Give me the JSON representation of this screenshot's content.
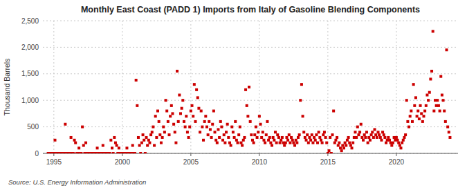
{
  "chart_data": {
    "type": "scatter",
    "title": "Monthly East Coast (PADD 1) Imports from Italy of Gasoline Blending Components",
    "y_label": "Thousand Barrels",
    "annotation": "Source: U.S. Energy Information Administration",
    "color": "#cc0000",
    "marker": "square",
    "grid": true,
    "xlim": [
      1994.2,
      2024.5
    ],
    "xticks": [
      1995,
      2000,
      2005,
      2010,
      2015,
      2020
    ],
    "ylim": [
      0,
      2500
    ],
    "yticks": [
      0,
      500,
      {
        "value": 1000,
        "label": "1,000"
      },
      {
        "value": 1500,
        "label": "1,500"
      },
      {
        "value": 2000,
        "label": "2,000"
      },
      {
        "value": 2500,
        "label": "2,500"
      }
    ],
    "x": [
      1994.583,
      1994.667,
      1994.75,
      1994.833,
      1994.917,
      1995.0,
      1995.083,
      1995.167,
      1995.25,
      1995.333,
      1995.417,
      1995.5,
      1995.583,
      1995.667,
      1995.75,
      1995.833,
      1995.917,
      1996.0,
      1996.083,
      1996.167,
      1996.25,
      1996.333,
      1996.417,
      1996.5,
      1996.583,
      1996.667,
      1996.75,
      1996.833,
      1996.917,
      1997.0,
      1997.083,
      1997.167,
      1997.25,
      1997.333,
      1997.417,
      1997.5,
      1997.583,
      1997.667,
      1997.75,
      1997.833,
      1997.917,
      1998.0,
      1998.083,
      1998.167,
      1998.25,
      1998.333,
      1998.417,
      1998.5,
      1998.583,
      1998.667,
      1998.75,
      1998.833,
      1998.917,
      1999.0,
      1999.083,
      1999.167,
      1999.25,
      1999.333,
      1999.417,
      1999.5,
      1999.583,
      1999.667,
      1999.75,
      1999.833,
      1999.917,
      2000.0,
      2000.083,
      2000.167,
      2000.25,
      2000.333,
      2000.417,
      2000.5,
      2000.583,
      2000.667,
      2000.75,
      2000.833,
      2000.917,
      2001.0,
      2001.083,
      2001.167,
      2001.25,
      2001.333,
      2001.417,
      2001.5,
      2001.583,
      2001.667,
      2001.75,
      2001.833,
      2001.917,
      2002.0,
      2002.083,
      2002.167,
      2002.25,
      2002.333,
      2002.417,
      2002.5,
      2002.583,
      2002.667,
      2002.75,
      2002.833,
      2002.917,
      2003.0,
      2003.083,
      2003.167,
      2003.25,
      2003.333,
      2003.417,
      2003.5,
      2003.583,
      2003.667,
      2003.75,
      2003.833,
      2003.917,
      2004.0,
      2004.083,
      2004.167,
      2004.25,
      2004.333,
      2004.417,
      2004.5,
      2004.583,
      2004.667,
      2004.75,
      2004.833,
      2004.917,
      2005.0,
      2005.083,
      2005.167,
      2005.25,
      2005.333,
      2005.417,
      2005.5,
      2005.583,
      2005.667,
      2005.75,
      2005.833,
      2005.917,
      2006.0,
      2006.083,
      2006.167,
      2006.25,
      2006.333,
      2006.417,
      2006.5,
      2006.583,
      2006.667,
      2006.75,
      2006.833,
      2006.917,
      2007.0,
      2007.083,
      2007.167,
      2007.25,
      2007.333,
      2007.417,
      2007.5,
      2007.583,
      2007.667,
      2007.75,
      2007.833,
      2007.917,
      2008.0,
      2008.083,
      2008.167,
      2008.25,
      2008.333,
      2008.417,
      2008.5,
      2008.583,
      2008.667,
      2008.75,
      2008.833,
      2008.917,
      2009.0,
      2009.083,
      2009.167,
      2009.25,
      2009.333,
      2009.417,
      2009.5,
      2009.583,
      2009.667,
      2009.75,
      2009.833,
      2009.917,
      2010.0,
      2010.083,
      2010.167,
      2010.25,
      2010.333,
      2010.417,
      2010.5,
      2010.583,
      2010.667,
      2010.75,
      2010.833,
      2010.917,
      2011.0,
      2011.083,
      2011.167,
      2011.25,
      2011.333,
      2011.417,
      2011.5,
      2011.583,
      2011.667,
      2011.75,
      2011.833,
      2011.917,
      2012.0,
      2012.083,
      2012.167,
      2012.25,
      2012.333,
      2012.417,
      2012.5,
      2012.583,
      2012.667,
      2012.75,
      2012.833,
      2012.917,
      2013.0,
      2013.083,
      2013.167,
      2013.25,
      2013.333,
      2013.417,
      2013.5,
      2013.583,
      2013.667,
      2013.75,
      2013.833,
      2013.917,
      2014.0,
      2014.083,
      2014.167,
      2014.25,
      2014.333,
      2014.417,
      2014.5,
      2014.583,
      2014.667,
      2014.75,
      2014.833,
      2014.917,
      2015.0,
      2015.083,
      2015.167,
      2015.25,
      2015.333,
      2015.417,
      2015.5,
      2015.583,
      2015.667,
      2015.75,
      2015.833,
      2015.917,
      2016.0,
      2016.083,
      2016.167,
      2016.25,
      2016.333,
      2016.417,
      2016.5,
      2016.583,
      2016.667,
      2016.75,
      2016.833,
      2016.917,
      2017.0,
      2017.083,
      2017.167,
      2017.25,
      2017.333,
      2017.417,
      2017.5,
      2017.583,
      2017.667,
      2017.75,
      2017.833,
      2017.917,
      2018.0,
      2018.083,
      2018.167,
      2018.25,
      2018.333,
      2018.417,
      2018.5,
      2018.583,
      2018.667,
      2018.75,
      2018.833,
      2018.917,
      2019.0,
      2019.083,
      2019.167,
      2019.25,
      2019.333,
      2019.417,
      2019.5,
      2019.583,
      2019.667,
      2019.75,
      2019.833,
      2019.917,
      2020.0,
      2020.083,
      2020.167,
      2020.25,
      2020.333,
      2020.417,
      2020.5,
      2020.583,
      2020.667,
      2020.75,
      2020.833,
      2020.917,
      2021.0,
      2021.083,
      2021.167,
      2021.25,
      2021.333,
      2021.417,
      2021.5,
      2021.583,
      2021.667,
      2021.75,
      2021.833,
      2021.917,
      2022.0,
      2022.083,
      2022.167,
      2022.25,
      2022.333,
      2022.417,
      2022.5,
      2022.583,
      2022.667,
      2022.75,
      2022.833,
      2022.917,
      2023.0,
      2023.083,
      2023.167,
      2023.25,
      2023.333,
      2023.417,
      2023.5,
      2023.583,
      2023.667,
      2023.75,
      2023.833,
      2023.917
    ],
    "values": [
      0,
      0,
      0,
      0,
      0,
      0,
      250,
      0,
      0,
      0,
      0,
      0,
      0,
      0,
      0,
      550,
      0,
      0,
      0,
      0,
      300,
      0,
      0,
      250,
      200,
      0,
      0,
      100,
      0,
      0,
      500,
      150,
      0,
      200,
      0,
      0,
      0,
      0,
      0,
      0,
      0,
      0,
      0,
      100,
      0,
      0,
      0,
      0,
      150,
      0,
      0,
      0,
      0,
      0,
      0,
      250,
      100,
      0,
      300,
      200,
      150,
      0,
      100,
      0,
      0,
      0,
      0,
      0,
      0,
      100,
      0,
      0,
      0,
      0,
      150,
      0,
      0,
      1380,
      900,
      300,
      150,
      0,
      200,
      350,
      250,
      0,
      300,
      150,
      250,
      200,
      350,
      400,
      500,
      150,
      700,
      300,
      800,
      600,
      350,
      200,
      300,
      500,
      400,
      1000,
      800,
      600,
      350,
      700,
      900,
      750,
      550,
      400,
      200,
      1550,
      600,
      1100,
      750,
      850,
      1000,
      600,
      500,
      700,
      400,
      300,
      500,
      800,
      900,
      700,
      1300,
      600,
      1200,
      1050,
      850,
      400,
      800,
      500,
      250,
      600,
      700,
      500,
      350,
      600,
      450,
      300,
      550,
      800,
      400,
      250,
      200,
      450,
      300,
      600,
      500,
      250,
      350,
      200,
      400,
      550,
      300,
      200,
      150,
      500,
      400,
      300,
      600,
      250,
      200,
      350,
      500,
      200,
      150,
      250,
      300,
      1200,
      900,
      700,
      1250,
      600,
      350,
      250,
      200,
      350,
      500,
      300,
      400,
      700,
      550,
      300,
      400,
      250,
      200,
      350,
      600,
      250,
      300,
      200,
      150,
      300,
      250,
      400,
      200,
      350,
      300,
      200,
      250,
      300,
      200,
      150,
      200,
      300,
      250,
      350,
      200,
      300,
      250,
      200,
      150,
      250,
      200,
      300,
      350,
      1000,
      1300,
      700,
      400,
      300,
      250,
      350,
      200,
      300,
      250,
      350,
      200,
      300,
      250,
      350,
      200,
      400,
      300,
      250,
      200,
      350,
      400,
      300,
      200,
      0,
      50,
      300,
      0,
      350,
      800,
      200,
      250,
      300,
      150,
      200,
      100,
      50,
      150,
      100,
      200,
      150,
      250,
      300,
      200,
      150,
      100,
      200,
      300,
      400,
      300,
      500,
      350,
      400,
      550,
      300,
      250,
      350,
      300,
      400,
      200,
      300,
      250,
      350,
      400,
      300,
      450,
      350,
      300,
      400,
      350,
      300,
      250,
      400,
      350,
      300,
      200,
      250,
      300,
      250,
      200,
      150,
      200,
      300,
      250,
      300,
      250,
      200,
      150,
      100,
      200,
      250,
      300,
      350,
      1000,
      600,
      500,
      700,
      800,
      600,
      1300,
      900,
      1050,
      700,
      800,
      650,
      900,
      750,
      600,
      700,
      800,
      900,
      1100,
      1000,
      1150,
      1400,
      1550,
      2300,
      800,
      1000,
      900,
      1000,
      900,
      800,
      1450,
      1100,
      1000,
      800,
      600,
      1950,
      500,
      400,
      300
    ]
  }
}
